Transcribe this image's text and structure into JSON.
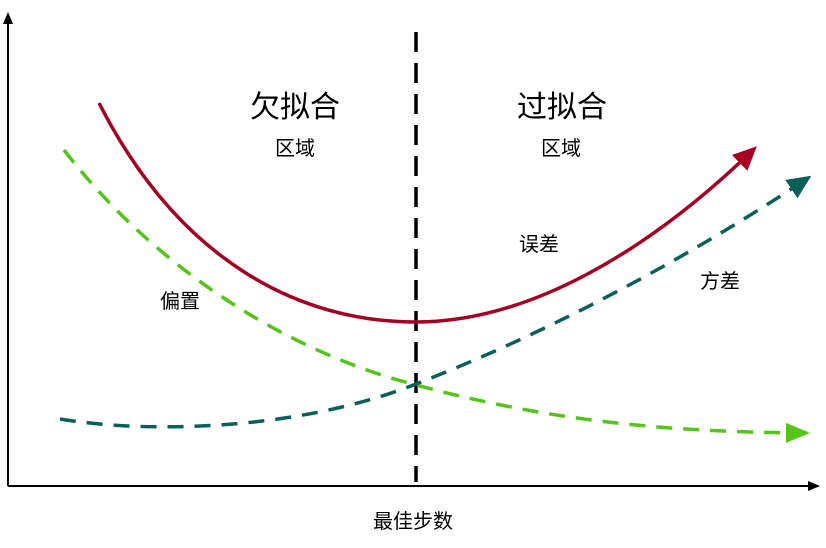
{
  "regions": {
    "underfit": {
      "title": "欠拟合",
      "subtitle": "区域"
    },
    "overfit": {
      "title": "过拟合",
      "subtitle": "区域"
    }
  },
  "curves": {
    "error": {
      "label": "误差",
      "color": "#a50021"
    },
    "variance": {
      "label": "方差",
      "color": "#0b5f5b"
    },
    "bias": {
      "label": "偏置",
      "color": "#52c41a"
    }
  },
  "axis": {
    "xlabel": "最佳步数"
  }
}
